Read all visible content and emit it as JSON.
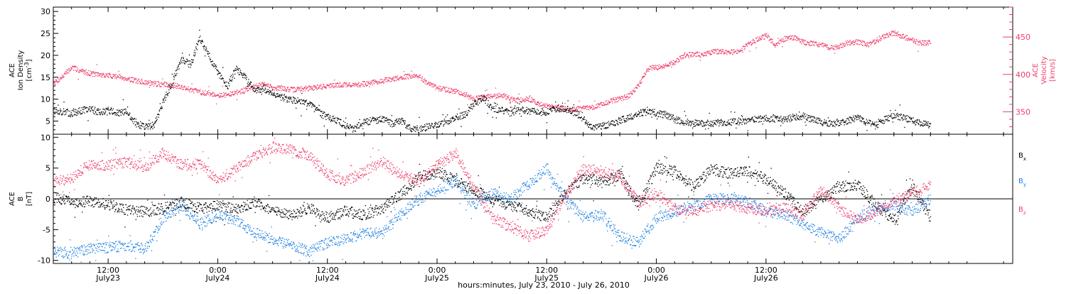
{
  "chart_data": [
    {
      "type": "scatter",
      "panel": "top",
      "xlim_hours": [
        6,
        111
      ],
      "left_axis": {
        "label_lines": [
          "ACE",
          "Ion Density",
          "[cm^-3]"
        ],
        "ylim": [
          2,
          31
        ],
        "ticks": [
          5,
          10,
          15,
          20,
          25,
          30
        ]
      },
      "right_axis": {
        "label_lines": [
          "ACE",
          "Velocity",
          "[km/s]"
        ],
        "ylim": [
          320,
          490
        ],
        "ticks": [
          350,
          400,
          450
        ]
      },
      "series": [
        {
          "name": "Ion Density",
          "axis": "left",
          "color": "#000000",
          "x": [
            6,
            7,
            8,
            9,
            10,
            11,
            12,
            13,
            14,
            15,
            16,
            17,
            18,
            19,
            20,
            21,
            22,
            23,
            24,
            25,
            26,
            27,
            28,
            29,
            30,
            31,
            32,
            33,
            34,
            35,
            36,
            37,
            38,
            39,
            40,
            41,
            42,
            43,
            44,
            45,
            46,
            47,
            48,
            49,
            50,
            51,
            52,
            53,
            54,
            55,
            56,
            57,
            58,
            59,
            60,
            61,
            62,
            63,
            64,
            65,
            66,
            67,
            68,
            69,
            70,
            71,
            72,
            73,
            74,
            75,
            76,
            77,
            78,
            79,
            80,
            81,
            82,
            83,
            84,
            85,
            86,
            87,
            88,
            89,
            90,
            91,
            92,
            93,
            94,
            95,
            96,
            97,
            98,
            99,
            100,
            101,
            102
          ],
          "values": [
            7.5,
            7.2,
            6.8,
            7.5,
            7.8,
            7.2,
            7.6,
            6.8,
            7.2,
            4.5,
            3.8,
            4.2,
            9.5,
            14,
            19,
            18,
            24,
            20,
            16,
            13,
            17,
            15,
            12,
            12.5,
            11.5,
            10.5,
            10,
            9.5,
            9,
            7,
            6,
            5.2,
            4,
            3.5,
            4.8,
            5.3,
            5.5,
            4.5,
            5.2,
            3.5,
            3.2,
            3.8,
            4.2,
            5,
            5.8,
            6.5,
            9,
            10.5,
            8,
            7.5,
            7,
            7.8,
            7.5,
            7,
            7.2,
            8,
            7.8,
            7.3,
            5.5,
            3.5,
            3.8,
            4.5,
            5.2,
            6,
            6.8,
            7.2,
            6.9,
            6.5,
            5.5,
            4.8,
            4.6,
            4.5,
            4.6,
            4.7,
            4.8,
            5,
            5.2,
            5.6,
            5.8,
            5.5,
            5.3,
            6,
            6.2,
            5.5,
            4.8,
            4.5,
            4.8,
            5.2,
            5.8,
            4.8,
            4,
            5.5,
            6.5,
            5.8,
            5.2,
            4.5,
            4.3
          ]
        },
        {
          "name": "Velocity",
          "axis": "right",
          "color": "#ee3d6a",
          "x": [
            6,
            7,
            8,
            9,
            10,
            11,
            12,
            13,
            14,
            15,
            16,
            17,
            18,
            19,
            20,
            21,
            22,
            23,
            24,
            25,
            26,
            27,
            28,
            29,
            30,
            31,
            32,
            33,
            34,
            35,
            36,
            37,
            38,
            39,
            40,
            41,
            42,
            43,
            44,
            45,
            46,
            47,
            48,
            49,
            50,
            51,
            52,
            53,
            54,
            55,
            56,
            57,
            58,
            59,
            60,
            61,
            62,
            63,
            64,
            65,
            66,
            67,
            68,
            69,
            70,
            71,
            72,
            73,
            74,
            75,
            76,
            77,
            78,
            79,
            80,
            81,
            82,
            83,
            84,
            85,
            86,
            87,
            88,
            89,
            90,
            91,
            92,
            93,
            94,
            95,
            96,
            97,
            98,
            99,
            100,
            101,
            102
          ],
          "values": [
            388,
            398,
            410,
            405,
            402,
            400,
            399,
            398,
            395,
            392,
            390,
            388,
            387,
            386,
            384,
            380,
            377,
            375,
            373,
            373,
            376,
            380,
            384,
            387,
            383,
            382,
            380,
            381,
            382,
            384,
            385,
            386,
            387,
            386,
            388,
            390,
            392,
            394,
            397,
            398,
            398,
            388,
            382,
            380,
            378,
            374,
            368,
            370,
            371,
            373,
            368,
            366,
            368,
            362,
            358,
            357,
            355,
            354,
            355,
            356,
            360,
            365,
            368,
            372,
            385,
            408,
            410,
            412,
            417,
            426,
            428,
            426,
            430,
            432,
            430,
            432,
            440,
            448,
            452,
            440,
            448,
            450,
            444,
            442,
            440,
            436,
            438,
            443,
            444,
            440,
            445,
            452,
            456,
            451,
            446,
            442,
            444
          ]
        }
      ]
    },
    {
      "type": "scatter",
      "panel": "bottom",
      "xlim_hours": [
        6,
        111
      ],
      "y_axis": {
        "label_lines": [
          "ACE",
          "B",
          "[nT]"
        ],
        "ylim": [
          -10.5,
          10.5
        ],
        "ticks": [
          -10,
          -5,
          0,
          5,
          10
        ]
      },
      "zero_line": true,
      "series": [
        {
          "name": "B_x",
          "color": "#000000",
          "x": [
            6,
            8,
            10,
            12,
            14,
            16,
            18,
            20,
            22,
            24,
            26,
            28,
            30,
            32,
            34,
            36,
            38,
            40,
            42,
            44,
            46,
            48,
            50,
            52,
            54,
            56,
            58,
            60,
            62,
            64,
            66,
            68,
            70,
            72,
            74,
            76,
            78,
            80,
            82,
            84,
            86,
            88,
            90,
            92,
            94,
            96,
            98,
            100,
            102
          ],
          "values": [
            0.3,
            -0.5,
            -0.3,
            -0.8,
            -1.8,
            -2,
            -1.5,
            -0.5,
            -1.5,
            -1,
            -1.5,
            -0.5,
            -2,
            -2.5,
            -1.5,
            -3,
            -2,
            -2.5,
            -1.5,
            0.8,
            3.5,
            4.5,
            3,
            1.5,
            0,
            -1,
            -2,
            -3,
            1,
            3.5,
            2.8,
            4,
            -1,
            5,
            4.5,
            2,
            4.8,
            4.2,
            4.5,
            3.2,
            1,
            -2,
            0,
            2,
            2.5,
            -1,
            -3.5,
            2,
            -3
          ]
        },
        {
          "name": "B_y",
          "color": "#1c7fe0",
          "x": [
            6,
            8,
            10,
            12,
            14,
            16,
            18,
            20,
            22,
            24,
            26,
            28,
            30,
            32,
            34,
            36,
            38,
            40,
            42,
            44,
            46,
            48,
            50,
            52,
            54,
            56,
            58,
            60,
            62,
            64,
            66,
            68,
            70,
            72,
            74,
            76,
            78,
            80,
            82,
            84,
            86,
            88,
            90,
            92,
            94,
            96,
            98,
            100,
            102
          ],
          "values": [
            -8.5,
            -8.7,
            -8,
            -7.8,
            -7.5,
            -8,
            -3,
            -1,
            -4,
            -2.5,
            -3.5,
            -5.5,
            -6.5,
            -7.5,
            -8.5,
            -7,
            -6.5,
            -5.5,
            -5.5,
            -2.5,
            0,
            1.5,
            3,
            -1,
            1,
            0,
            2.5,
            5,
            0,
            -3,
            -2.5,
            -6,
            -7,
            -3,
            -2,
            -1,
            0,
            0,
            -0.5,
            -2,
            -2.5,
            -4,
            -5.5,
            -6.5,
            -3,
            -1.5,
            -1,
            -2,
            0
          ]
        },
        {
          "name": "B_z",
          "color": "#ee3d6a",
          "x": [
            6,
            8,
            10,
            12,
            14,
            16,
            18,
            20,
            22,
            24,
            26,
            28,
            30,
            32,
            34,
            36,
            38,
            40,
            42,
            44,
            46,
            48,
            50,
            52,
            54,
            56,
            58,
            60,
            62,
            64,
            66,
            68,
            70,
            72,
            74,
            76,
            78,
            80,
            82,
            84,
            86,
            88,
            90,
            92,
            94,
            96,
            98,
            100,
            102
          ],
          "values": [
            2.8,
            3.5,
            5.8,
            5.5,
            6,
            5.2,
            7.5,
            5.5,
            5.8,
            3,
            5,
            7,
            8.5,
            8,
            7,
            4,
            3,
            4.5,
            6,
            4,
            3,
            5.5,
            7.5,
            2,
            -3,
            -4.5,
            -6,
            -5,
            0.5,
            5,
            4.5,
            3.5,
            -0.5,
            1,
            -1.5,
            -2,
            -1,
            -0.8,
            -1.5,
            -2,
            -1.5,
            -2.5,
            1.5,
            -1.5,
            -3.5,
            -2,
            -0.5,
            1,
            2.5
          ]
        }
      ],
      "legend": [
        "B_x",
        "B_y",
        "B_z"
      ]
    }
  ],
  "x_axis": {
    "label": "hours:minutes, July 23, 2010 - July 26, 2010",
    "ticks": [
      {
        "hour": 12,
        "time": "12:00",
        "date": "July23"
      },
      {
        "hour": 24,
        "time": "0:00",
        "date": "July24"
      },
      {
        "hour": 36,
        "time": "12:00",
        "date": "July24"
      },
      {
        "hour": 48,
        "time": "0:00",
        "date": "July25"
      },
      {
        "hour": 60,
        "time": "12:00",
        "date": "July25"
      },
      {
        "hour": 72,
        "time": "0:00",
        "date": "July26"
      },
      {
        "hour": 84,
        "time": "12:00",
        "date": "July26"
      }
    ]
  },
  "colors": {
    "density": "#000000",
    "velocity": "#ee3d6a",
    "bx": "#000000",
    "by": "#1c7fe0",
    "bz": "#ee3d6a"
  }
}
